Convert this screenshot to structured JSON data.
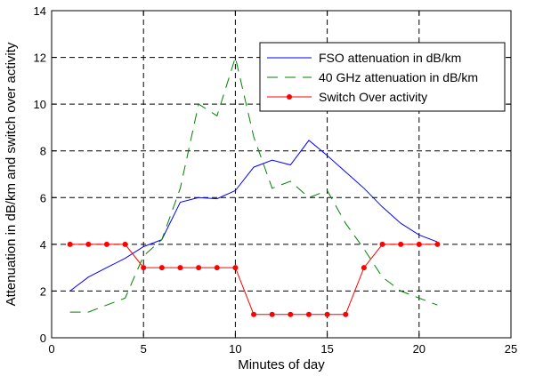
{
  "chart_data": {
    "type": "line",
    "title": "",
    "xlabel": "Minutes of day",
    "ylabel": "Attenuation in dB/km and switch over activity",
    "xlim": [
      0,
      25
    ],
    "ylim": [
      0,
      14
    ],
    "xticks": [
      0,
      5,
      10,
      15,
      20,
      25
    ],
    "yticks": [
      0,
      2,
      4,
      6,
      8,
      10,
      12,
      14
    ],
    "grid": true,
    "grid_style": "dashed",
    "legend_position": "top-right",
    "series": [
      {
        "name": "FSO attenuation in dB/km",
        "color": "#0000ff",
        "line_style": "solid",
        "marker": "none",
        "x": [
          1,
          2,
          3,
          4,
          5,
          6,
          7,
          8,
          9,
          10,
          11,
          12,
          13,
          14,
          15,
          16,
          17,
          18,
          19,
          20,
          21
        ],
        "y": [
          2.0,
          2.6,
          3.0,
          3.4,
          3.9,
          4.2,
          5.8,
          6.0,
          5.95,
          6.3,
          7.3,
          7.6,
          7.4,
          8.45,
          7.8,
          7.1,
          6.4,
          5.6,
          4.9,
          4.4,
          4.1
        ]
      },
      {
        "name": "40 GHz attenuation in dB/km",
        "color": "#008000",
        "line_style": "dashed",
        "marker": "none",
        "x": [
          1,
          2,
          3,
          4,
          5,
          6,
          7,
          8,
          9,
          10,
          11,
          12,
          13,
          14,
          15,
          16,
          17,
          18,
          19,
          20,
          21
        ],
        "y": [
          1.1,
          1.1,
          1.4,
          1.7,
          3.5,
          4.2,
          6.4,
          10.0,
          9.5,
          12.0,
          8.6,
          6.4,
          6.7,
          6.0,
          6.3,
          4.9,
          3.8,
          2.6,
          2.0,
          1.7,
          1.4
        ]
      },
      {
        "name": "Switch Over activity",
        "color": "#ff0000",
        "line_style": "solid",
        "marker": "dot",
        "x": [
          1,
          2,
          3,
          4,
          5,
          6,
          7,
          8,
          9,
          10,
          11,
          12,
          13,
          14,
          15,
          16,
          17,
          18,
          19,
          20,
          21
        ],
        "y": [
          4,
          4,
          4,
          4,
          3,
          3,
          3,
          3,
          3,
          3,
          1,
          1,
          1,
          1,
          1,
          1,
          3,
          4,
          4,
          4,
          4
        ]
      }
    ]
  }
}
